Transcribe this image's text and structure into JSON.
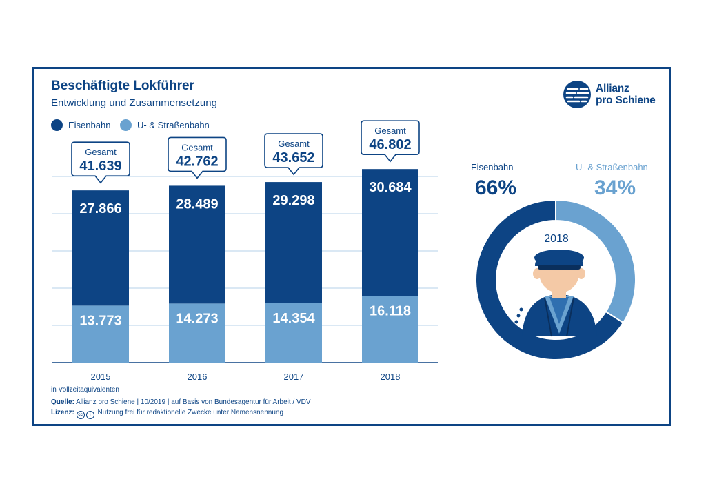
{
  "header": {
    "title": "Beschäftigte Lokführer",
    "subtitle": "Entwicklung und Zusammensetzung"
  },
  "logo": {
    "line1": "Allianz",
    "line2": "pro Schiene"
  },
  "legend": [
    {
      "label": "Eisenbahn",
      "color": "#0d4484"
    },
    {
      "label": "U- & Straßenbahn",
      "color": "#6aa2d0"
    }
  ],
  "chart_data": [
    {
      "type": "bar",
      "stacked": true,
      "categories": [
        "2015",
        "2016",
        "2017",
        "2018"
      ],
      "series": [
        {
          "name": "U- & Straßenbahn",
          "values": [
            13.773,
            14.273,
            14.354,
            16.118
          ],
          "labels": [
            "13.773",
            "14.273",
            "14.354",
            "16.118"
          ],
          "color": "#6aa2d0"
        },
        {
          "name": "Eisenbahn",
          "values": [
            27.866,
            28.489,
            29.298,
            30.684
          ],
          "labels": [
            "27.866",
            "28.489",
            "29.298",
            "30.684"
          ],
          "color": "#0d4484"
        }
      ],
      "totals_label": "Gesamt",
      "totals": [
        "41.639",
        "42.762",
        "43.652",
        "46.802"
      ],
      "grid": true,
      "ylim": [
        0,
        53
      ]
    },
    {
      "type": "pie",
      "donut": true,
      "center_label": "2018",
      "slices": [
        {
          "label": "Eisenbahn",
          "value": 66,
          "display": "66%",
          "color": "#0d4484"
        },
        {
          "label": "U- & Straßenbahn",
          "value": 34,
          "display": "34%",
          "color": "#6aa2d0"
        }
      ]
    }
  ],
  "footer": {
    "unit_note": "in Vollzeitäquivalenten",
    "source_label": "Quelle:",
    "source_text": "Allianz pro Schiene | 10/2019 | auf Basis von Bundesagentur für Arbeit / VDV",
    "license_label": "Lizenz:",
    "license_text": "Nutzung frei für redaktionelle Zwecke unter Namensnennung",
    "license_icons": [
      "cc",
      "by"
    ]
  }
}
